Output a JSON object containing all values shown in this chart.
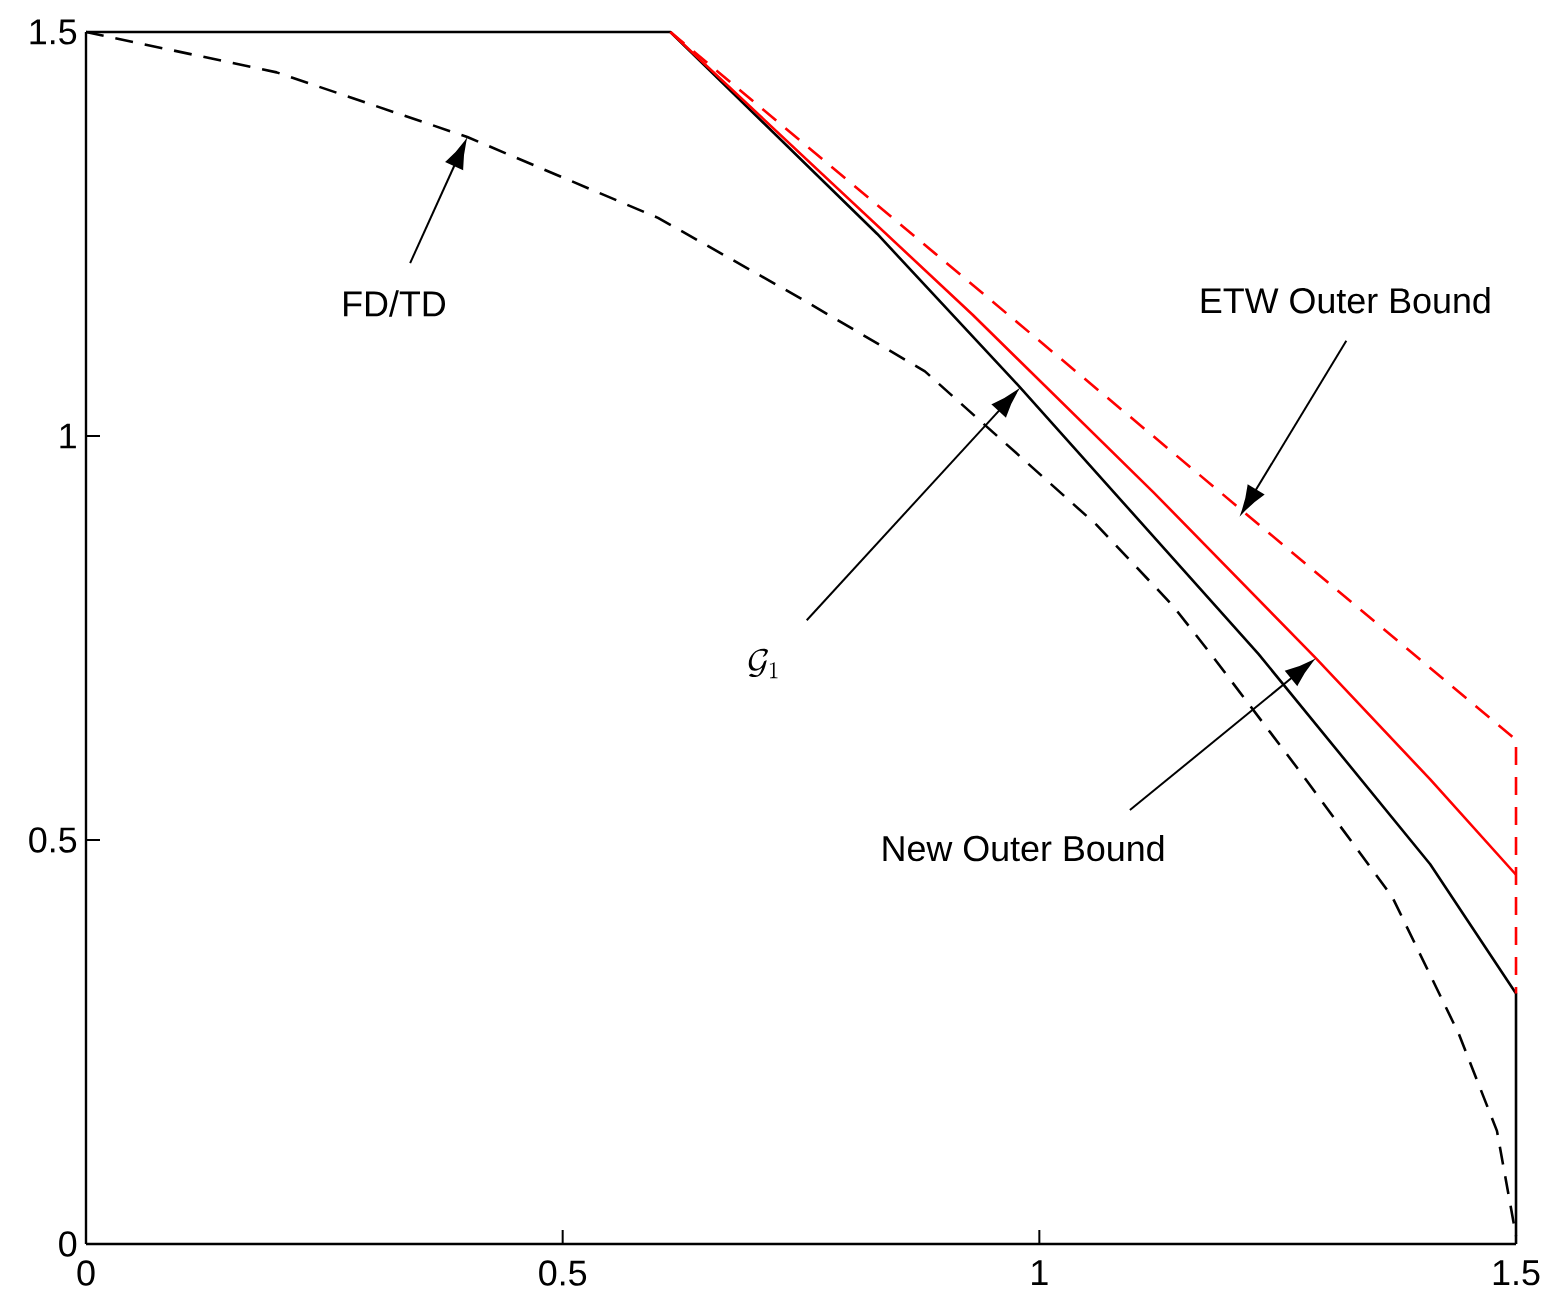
{
  "chart_data": {
    "type": "line",
    "xlim": [
      0,
      1.5
    ],
    "ylim": [
      0,
      1.5
    ],
    "xticks": [
      0,
      0.5,
      1,
      1.5
    ],
    "yticks": [
      0,
      0.5,
      1,
      1.5
    ],
    "grid": false,
    "marker": "none",
    "series": [
      {
        "color": "#000000",
        "line_style": "dashed",
        "x": [
          0,
          0.2,
          0.4,
          0.6,
          0.75,
          0.88,
          1.06,
          1.14,
          1.18,
          1.27,
          1.37,
          1.44,
          1.48,
          1.5
        ],
        "values": [
          1.5,
          1.45,
          1.37,
          1.27,
          1.17,
          1.08,
          0.89,
          0.79,
          0.73,
          0.59,
          0.43,
          0.26,
          0.14,
          0.01
        ]
      },
      {
        "color": "#000000",
        "line_style": "solid",
        "x": [
          0,
          0.613,
          0.83,
          0.98,
          1.23,
          1.41,
          1.5,
          1.5
        ],
        "values": [
          1.5,
          1.5,
          1.25,
          1.06,
          0.73,
          0.47,
          0.31,
          0
        ]
      },
      {
        "color": "#ff0000",
        "line_style": "solid",
        "x": [
          0.613,
          0.93,
          1.12,
          1.29,
          1.41,
          1.5
        ],
        "values": [
          1.5,
          1.15,
          0.93,
          0.725,
          0.575,
          0.457
        ]
      },
      {
        "color": "#ff0000",
        "line_style": "dashed",
        "x": [
          0.613,
          1.5,
          1.5
        ],
        "values": [
          1.5,
          0.624,
          0.31
        ]
      }
    ],
    "annotations": [
      "FD/TD",
      "ETW Outer Bound",
      "\\mathcal{G}_1",
      "New Outer Bound"
    ]
  }
}
